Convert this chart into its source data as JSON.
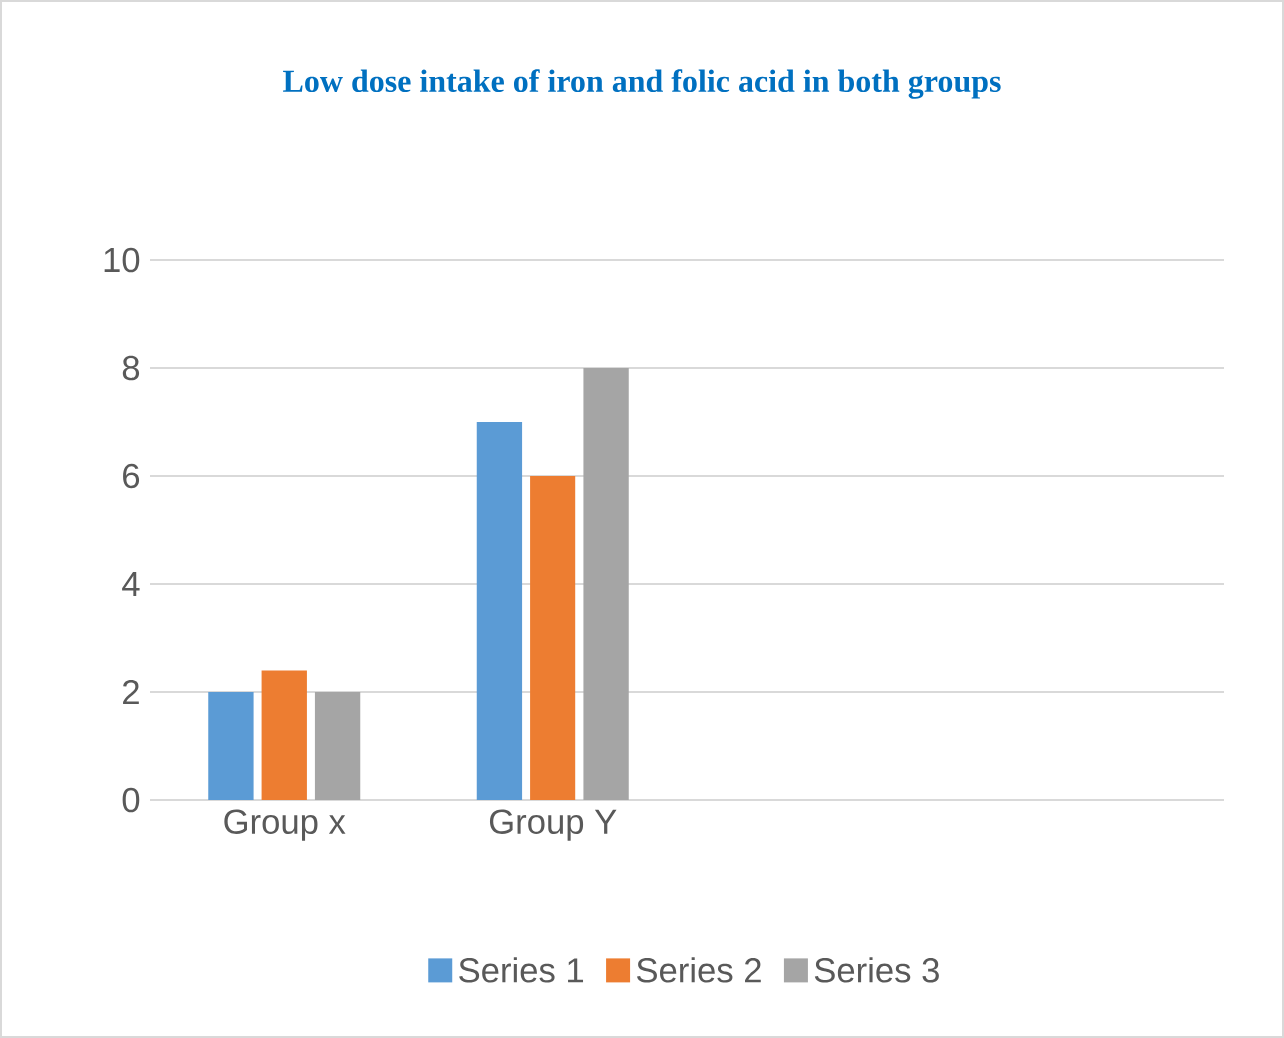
{
  "chart_data": {
    "type": "bar",
    "title": "Low dose intake of iron and folic acid in both groups",
    "categories": [
      "Group x",
      "Group Y",
      null,
      null
    ],
    "series": [
      {
        "name": "Series 1",
        "color": "#5b9bd5",
        "values": [
          2,
          7,
          null,
          null
        ]
      },
      {
        "name": "Series 2",
        "color": "#ed7d31",
        "values": [
          2.4,
          6,
          null,
          null
        ]
      },
      {
        "name": "Series 3",
        "color": "#a5a5a5",
        "values": [
          2,
          8,
          null,
          null
        ]
      }
    ],
    "ylim": [
      0,
      10
    ],
    "yticks": [
      0,
      2,
      4,
      6,
      8,
      10
    ],
    "grid": "y",
    "legend": "bottom"
  }
}
